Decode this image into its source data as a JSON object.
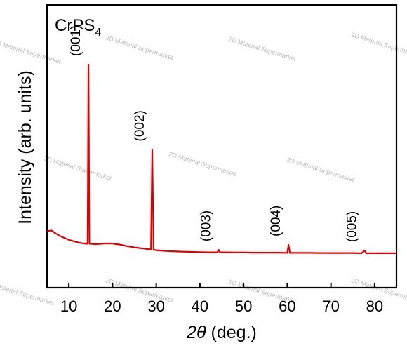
{
  "chart_data": {
    "type": "line",
    "sample_label": "CrPS",
    "sample_label_subscript": "4",
    "xlabel_symbol": "2θ",
    "xlabel_unit": "(deg.)",
    "ylabel": "Intensity (arb. units)",
    "xlim": [
      5,
      85
    ],
    "xticks": [
      10,
      20,
      30,
      40,
      50,
      60,
      70,
      80
    ],
    "y_ticks_shown": false,
    "grid": false,
    "line_color": "#e00000",
    "series": [
      {
        "x": [
          5,
          6,
          7,
          8,
          9,
          10,
          11,
          12,
          13,
          14,
          14.3,
          14.5,
          14.7,
          15,
          16,
          17,
          18,
          19,
          20,
          21,
          22,
          23,
          24,
          25,
          26,
          27,
          28,
          28.8,
          29.1,
          29.4,
          30,
          31,
          33,
          35,
          38,
          40,
          42,
          44,
          44.3,
          44.6,
          46,
          48,
          50,
          52,
          55,
          58,
          60,
          60.3,
          60.6,
          62,
          65,
          68,
          70,
          72,
          75,
          77,
          77.7,
          78.1,
          80,
          83,
          85
        ],
        "y": [
          0.12,
          0.125,
          0.108,
          0.095,
          0.085,
          0.075,
          0.068,
          0.062,
          0.057,
          0.054,
          0.054,
          1.0,
          0.054,
          0.054,
          0.052,
          0.053,
          0.055,
          0.056,
          0.055,
          0.052,
          0.048,
          0.043,
          0.039,
          0.035,
          0.032,
          0.029,
          0.026,
          0.024,
          0.55,
          0.023,
          0.02,
          0.018,
          0.015,
          0.013,
          0.011,
          0.01,
          0.009,
          0.009,
          0.022,
          0.009,
          0.009,
          0.008,
          0.008,
          0.007,
          0.007,
          0.007,
          0.006,
          0.048,
          0.006,
          0.006,
          0.006,
          0.005,
          0.005,
          0.005,
          0.005,
          0.004,
          0.018,
          0.004,
          0.004,
          0.004,
          0.004
        ]
      }
    ],
    "peaks": [
      {
        "label": "(001)",
        "x": 14.5,
        "y": 1.0
      },
      {
        "label": "(002)",
        "x": 29.1,
        "y": 0.55
      },
      {
        "label": "(003)",
        "x": 44.3,
        "y": 0.022
      },
      {
        "label": "(004)",
        "x": 60.3,
        "y": 0.048
      },
      {
        "label": "(005)",
        "x": 77.7,
        "y": 0.018
      }
    ]
  },
  "watermark": "2D Material Supermarket"
}
